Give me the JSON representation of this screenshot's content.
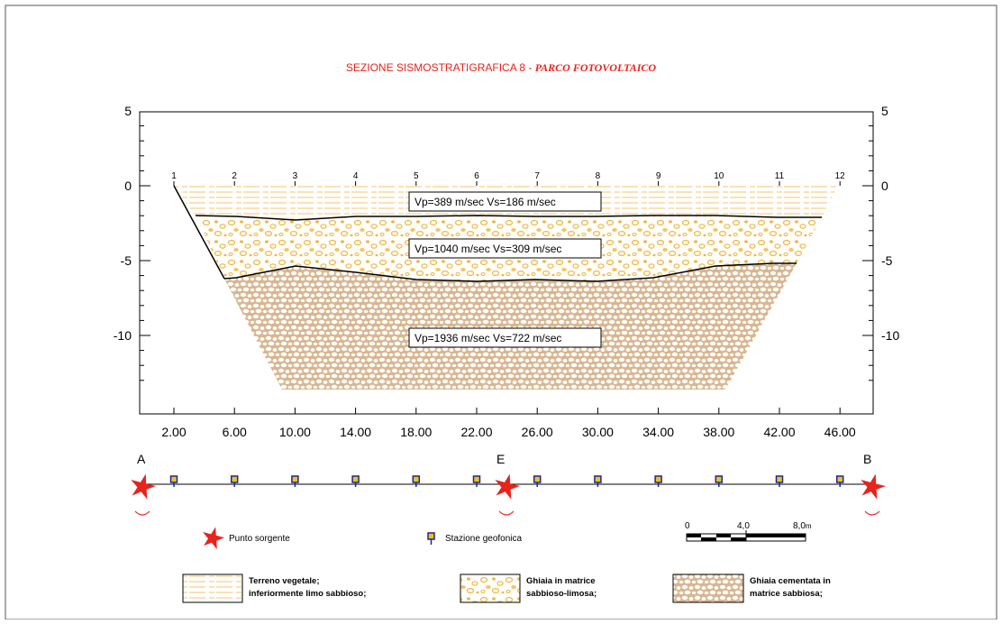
{
  "title": {
    "main": "SEZIONE SISMOSTRATIGRAFICA 8 - ",
    "italic": "PARCO FOTOVOLTAICO"
  },
  "y_axis": {
    "ticks": [
      {
        "value": 5,
        "label": "5"
      },
      {
        "value": 0,
        "label": "0"
      },
      {
        "value": -5,
        "label": "-5"
      },
      {
        "value": -10,
        "label": "-10"
      }
    ]
  },
  "x_axis": {
    "ticks": [
      "2.00",
      "6.00",
      "10.00",
      "14.00",
      "18.00",
      "22.00",
      "26.00",
      "30.00",
      "34.00",
      "38.00",
      "42.00",
      "46.00"
    ]
  },
  "geophone_numbers": [
    "1",
    "2",
    "3",
    "4",
    "5",
    "6",
    "7",
    "8",
    "9",
    "10",
    "11",
    "12"
  ],
  "velocity_labels": [
    {
      "id": "layer1",
      "text": "Vp=389  m/sec     Vs=186 m/sec"
    },
    {
      "id": "layer2",
      "text": "Vp=1040 m/sec   Vs=309 m/sec"
    },
    {
      "id": "layer3",
      "text": "Vp=1936 m/sec   Vs=722 m/sec"
    }
  ],
  "points": {
    "A": "A",
    "E": "E",
    "B": "B"
  },
  "legend": {
    "source": "Punto sorgente",
    "station": "Stazione geofonica",
    "scale": {
      "zero": "0",
      "mid": "4,0",
      "end": "8,0",
      "unit": "m"
    },
    "layer1": [
      "Terreno vegetale;",
      "inferiormente limo sabbioso;"
    ],
    "layer2": [
      "Ghiaia in matrice",
      "sabbioso-limosa;"
    ],
    "layer3": [
      "Ghiaia cementata in",
      "matrice sabbiosa;"
    ]
  },
  "colors": {
    "title": "#e8231c",
    "star": "#e8231c",
    "layer1": "#f5c56c",
    "layer2": "#f2b63a",
    "layer3": "#c9a07a",
    "geophone": "#f0c020"
  }
}
